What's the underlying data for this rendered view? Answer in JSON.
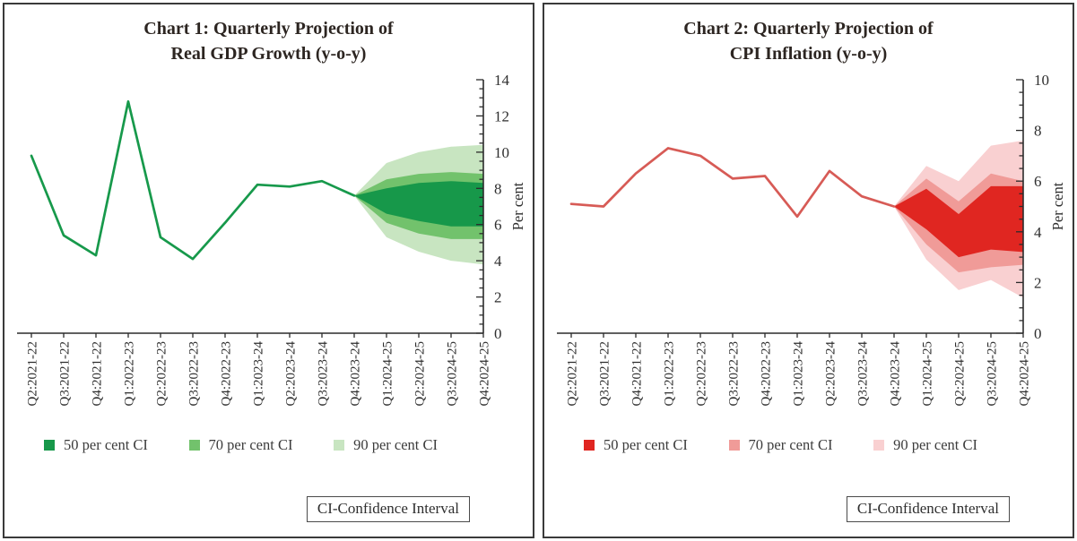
{
  "panels": [
    {
      "title_line1": "Chart 1: Quarterly Projection of",
      "title_line2": "Real GDP Growth (y-o-y)",
      "ci_note": "CI-Confidence Interval",
      "legend": [
        {
          "label": "50 per cent CI",
          "color": "#17984a"
        },
        {
          "label": "70 per cent CI",
          "color": "#72c26c"
        },
        {
          "label": "90 per cent CI",
          "color": "#c8e5c1"
        }
      ]
    },
    {
      "title_line1": "Chart 2: Quarterly Projection of",
      "title_line2": "CPI Inflation (y-o-y)",
      "ci_note": "CI-Confidence Interval",
      "legend": [
        {
          "label": "50 per cent CI",
          "color": "#e02621"
        },
        {
          "label": "70 per cent CI",
          "color": "#f09b98"
        },
        {
          "label": "90 per cent CI",
          "color": "#f9d0d1"
        }
      ]
    }
  ],
  "chart_data": [
    {
      "type": "line",
      "subtype": "fan-chart",
      "title": "Chart 1: Quarterly Projection of Real GDP Growth (y-o-y)",
      "xlabel": "",
      "ylabel": "Per cent",
      "ylim": [
        0,
        14
      ],
      "ytick_step": 2,
      "ytick_minor": 0.5,
      "grid": false,
      "legend_position": "bottom",
      "note": "CI-Confidence Interval",
      "categories": [
        "Q2:2021-22",
        "Q3:2021-22",
        "Q4:2021-22",
        "Q1:2022-23",
        "Q2:2022-23",
        "Q3:2022-23",
        "Q4:2022-23",
        "Q1:2023-24",
        "Q2:2023-24",
        "Q3:2023-24",
        "Q4:2023-24",
        "Q1:2024-25",
        "Q2:2024-25",
        "Q3:2024-25",
        "Q4:2024-25"
      ],
      "series": [
        {
          "name": "Real GDP growth (historical path)",
          "color": "#17994b",
          "values": [
            9.8,
            5.4,
            4.3,
            12.8,
            5.3,
            4.1,
            6.1,
            8.2,
            8.1,
            8.4,
            7.6
          ]
        }
      ],
      "fan": {
        "start_index": 10,
        "bands": [
          {
            "name": "90 per cent CI",
            "color": "#c8e5c1",
            "upper": [
              7.6,
              9.4,
              10.0,
              10.3,
              10.4
            ],
            "lower": [
              7.6,
              5.3,
              4.5,
              4.0,
              3.8
            ]
          },
          {
            "name": "70 per cent CI",
            "color": "#72c26c",
            "upper": [
              7.6,
              8.5,
              8.8,
              8.9,
              8.8
            ],
            "lower": [
              7.6,
              6.1,
              5.5,
              5.2,
              5.2
            ]
          },
          {
            "name": "50 per cent CI",
            "color": "#17984a",
            "upper": [
              7.6,
              8.0,
              8.3,
              8.4,
              8.3
            ],
            "lower": [
              7.6,
              6.6,
              6.2,
              5.9,
              5.9
            ]
          }
        ]
      }
    },
    {
      "type": "line",
      "subtype": "fan-chart",
      "title": "Chart 2: Quarterly Projection of CPI Inflation (y-o-y)",
      "xlabel": "",
      "ylabel": "Per cent",
      "ylim": [
        0,
        10
      ],
      "ytick_step": 2,
      "ytick_minor": 0.5,
      "grid": false,
      "legend_position": "bottom",
      "note": "CI-Confidence Interval",
      "categories": [
        "Q2:2021-22",
        "Q3:2021-22",
        "Q4:2021-22",
        "Q1:2022-23",
        "Q2:2022-23",
        "Q3:2022-23",
        "Q4:2022-23",
        "Q1:2023-24",
        "Q2:2023-24",
        "Q3:2023-24",
        "Q4:2023-24",
        "Q1:2024-25",
        "Q2:2024-25",
        "Q3:2024-25",
        "Q4:2024-25"
      ],
      "series": [
        {
          "name": "CPI inflation (historical path)",
          "color": "#d75b56",
          "values": [
            5.1,
            5.0,
            6.3,
            7.3,
            7.0,
            6.1,
            6.2,
            4.6,
            6.4,
            5.4,
            5.0
          ]
        }
      ],
      "fan": {
        "start_index": 10,
        "bands": [
          {
            "name": "90 per cent CI",
            "color": "#f9d0d1",
            "upper": [
              5.0,
              6.6,
              6.0,
              7.4,
              7.6
            ],
            "lower": [
              5.0,
              2.9,
              1.7,
              2.1,
              1.4
            ]
          },
          {
            "name": "70 per cent CI",
            "color": "#f09b98",
            "upper": [
              5.0,
              6.1,
              5.2,
              6.3,
              6.0
            ],
            "lower": [
              5.0,
              3.5,
              2.4,
              2.6,
              2.7
            ]
          },
          {
            "name": "50 per cent CI",
            "color": "#e02621",
            "upper": [
              5.0,
              5.7,
              4.7,
              5.8,
              5.8
            ],
            "lower": [
              5.0,
              4.1,
              3.0,
              3.3,
              3.2
            ]
          }
        ]
      }
    }
  ]
}
